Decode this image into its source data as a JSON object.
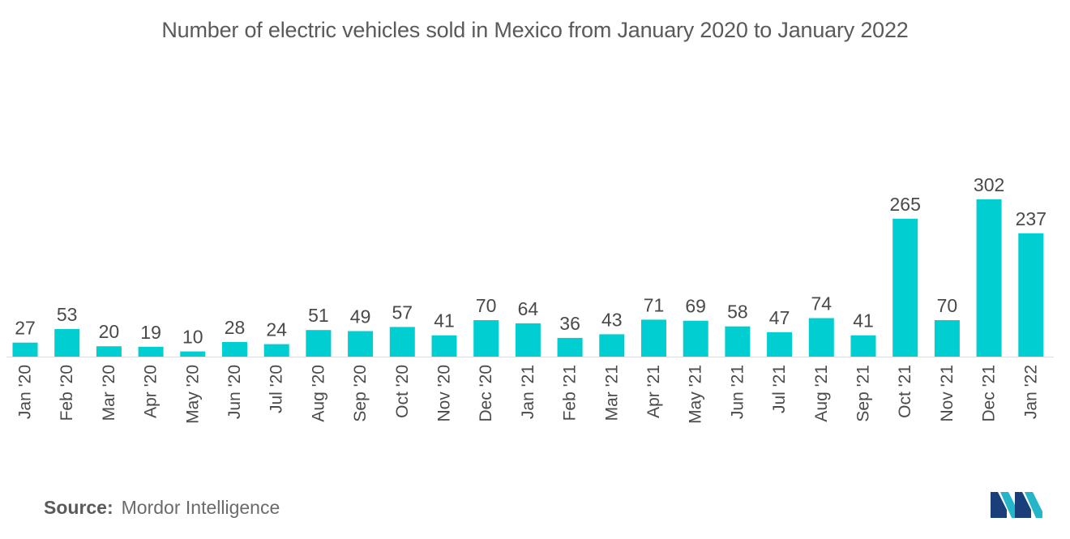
{
  "chart_data": {
    "type": "bar",
    "title": "Number of electric vehicles sold in Mexico from January 2020 to January 2022",
    "xlabel": "",
    "ylabel": "",
    "ylim": [
      0,
      302
    ],
    "grid": false,
    "categories": [
      "Jan '20",
      "Feb '20",
      "Mar '20",
      "Apr '20",
      "May '20",
      "Jun '20",
      "Jul '20",
      "Aug '20",
      "Sep '20",
      "Oct '20",
      "Nov '20",
      "Dec '20",
      "Jan '21",
      "Feb '21",
      "Mar '21",
      "Apr '21",
      "May '21",
      "Jun '21",
      "Jul '21",
      "Aug '21",
      "Sep '21",
      "Oct '21",
      "Nov '21",
      "Dec '21",
      "Jan '22"
    ],
    "values": [
      27,
      53,
      20,
      19,
      10,
      28,
      24,
      51,
      49,
      57,
      41,
      70,
      64,
      36,
      43,
      71,
      69,
      58,
      47,
      74,
      41,
      265,
      70,
      302,
      237
    ],
    "bar_color": "#00ced1",
    "label_color": "#4a4a4a",
    "axis_color": "#dddddd"
  },
  "footer": {
    "source_label": "Source:",
    "source_value": "Mordor Intelligence"
  },
  "logo": {
    "icon": "mordor-intelligence-logo-icon",
    "colors": [
      "#1a3e7a",
      "#25b5c9"
    ]
  }
}
